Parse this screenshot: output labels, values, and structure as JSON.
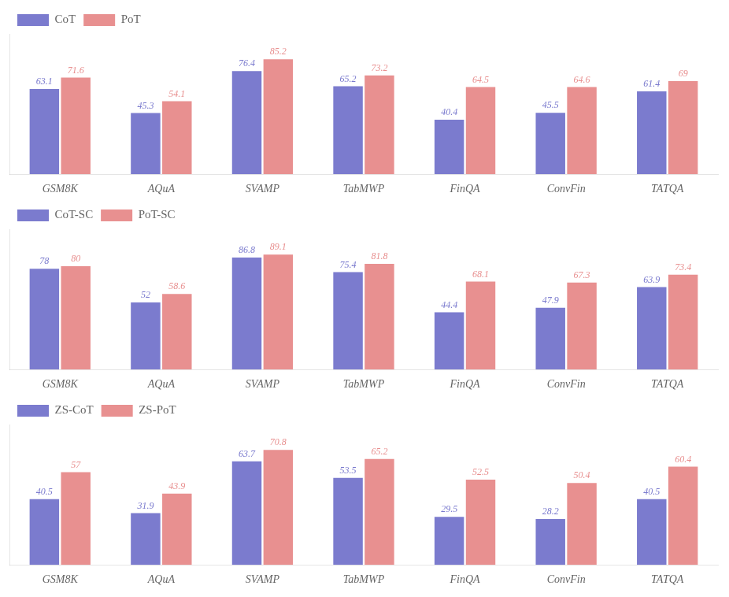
{
  "chart_data": [
    {
      "type": "bar",
      "categories": [
        "GSM8K",
        "AQuA",
        "SVAMP",
        "TabMWP",
        "FinQA",
        "ConvFin",
        "TATQA"
      ],
      "series": [
        {
          "name": "CoT",
          "color": "#7b7bce",
          "values": [
            63.1,
            45.3,
            76.4,
            65.2,
            40.4,
            45.5,
            61.4
          ]
        },
        {
          "name": "PoT",
          "color": "#e89090",
          "values": [
            71.6,
            54.1,
            85.2,
            73.2,
            64.5,
            64.6,
            69.0
          ]
        }
      ],
      "ylim": [
        0,
        103.944
      ],
      "tick_labels": "x",
      "grid": false,
      "legend": "upper left",
      "data_labels": true
    },
    {
      "type": "bar",
      "categories": [
        "GSM8K",
        "AQuA",
        "SVAMP",
        "TabMWP",
        "FinQA",
        "ConvFin",
        "TATQA"
      ],
      "series": [
        {
          "name": "CoT-SC",
          "color": "#7b7bce",
          "values": [
            78.0,
            52.0,
            86.8,
            75.4,
            44.4,
            47.9,
            63.9
          ]
        },
        {
          "name": "PoT-SC",
          "color": "#e89090",
          "values": [
            80.0,
            58.6,
            89.1,
            81.8,
            68.1,
            67.3,
            73.4
          ]
        }
      ],
      "ylim": [
        0,
        108.702
      ],
      "tick_labels": "x",
      "grid": false,
      "legend": "upper left",
      "data_labels": true
    },
    {
      "type": "bar",
      "categories": [
        "GSM8K",
        "AQuA",
        "SVAMP",
        "TabMWP",
        "FinQA",
        "ConvFin",
        "TATQA"
      ],
      "series": [
        {
          "name": "ZS-CoT",
          "color": "#7b7bce",
          "values": [
            40.5,
            31.9,
            63.7,
            53.5,
            29.5,
            28.2,
            40.5
          ]
        },
        {
          "name": "ZS-PoT",
          "color": "#e89090",
          "values": [
            57.0,
            43.9,
            70.8,
            65.2,
            52.5,
            50.4,
            60.4
          ]
        }
      ],
      "ylim": [
        0,
        86.376
      ],
      "tick_labels": "x",
      "grid": false,
      "legend": "upper left",
      "data_labels": true
    }
  ]
}
